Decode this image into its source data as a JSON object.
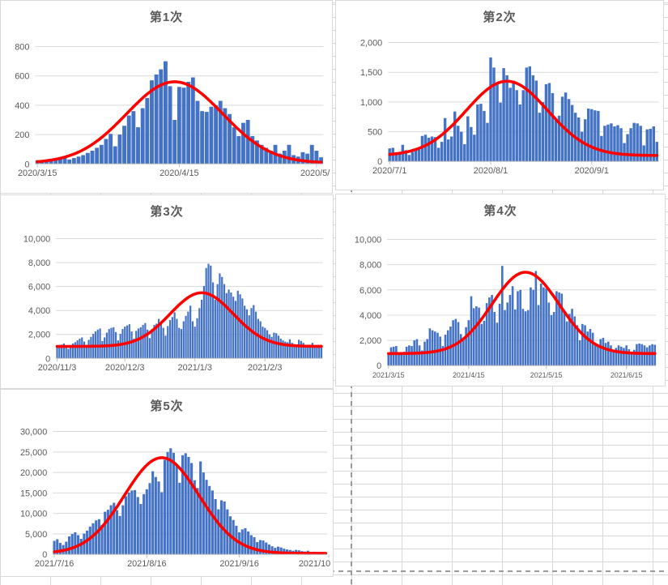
{
  "sheet": {
    "background_color": "#FFFFFF",
    "gridline_color": "#D8D8D8",
    "page_break_color": "#9B9B9B"
  },
  "palette": {
    "bar": "#4472C4",
    "curve": "#FF0000",
    "title_text": "#595959",
    "tick_text": "#595959",
    "gridline": "#D9D9D9",
    "axis_line": "#BFBFBF",
    "chart_border": "#D9D9D9"
  },
  "chart_data": [
    {
      "id": "wave1",
      "type": "bar",
      "title": "第1次",
      "ylabel": "",
      "xlabel": "",
      "ylim": [
        0,
        800
      ],
      "grid": true,
      "legend": "none",
      "yticks": [
        {
          "v": 0,
          "label": "0"
        },
        {
          "v": 200,
          "label": "200"
        },
        {
          "v": 400,
          "label": "400"
        },
        {
          "v": 600,
          "label": "600"
        },
        {
          "v": 800,
          "label": "800"
        }
      ],
      "xticks": [
        {
          "day": 0,
          "label": "2020/3/15"
        },
        {
          "day": 31,
          "label": "2020/4/15"
        },
        {
          "day": 61,
          "label": "2020/5/",
          "anchor": "end"
        }
      ],
      "values": [
        25,
        15,
        30,
        35,
        40,
        40,
        45,
        30,
        40,
        50,
        60,
        75,
        90,
        110,
        130,
        170,
        205,
        120,
        200,
        260,
        330,
        360,
        250,
        380,
        450,
        570,
        610,
        645,
        700,
        530,
        300,
        525,
        520,
        560,
        590,
        430,
        360,
        355,
        390,
        400,
        430,
        380,
        340,
        250,
        190,
        280,
        300,
        190,
        160,
        130,
        110,
        90,
        130,
        70,
        90,
        130,
        60,
        50,
        80,
        70,
        130,
        90,
        45
      ],
      "curve": {
        "shape": "gaussian",
        "baseline": 6,
        "peak": 560,
        "center_index": 30,
        "sigma_days": 10.5
      }
    },
    {
      "id": "wave2",
      "type": "bar",
      "title": "第2次",
      "ylabel": "",
      "xlabel": "",
      "ylim": [
        0,
        2000
      ],
      "grid": true,
      "legend": "none",
      "yticks": [
        {
          "v": 0,
          "label": "0"
        },
        {
          "v": 500,
          "label": "500"
        },
        {
          "v": 1000,
          "label": "1,000"
        },
        {
          "v": 1500,
          "label": "1,500"
        },
        {
          "v": 2000,
          "label": "2,000"
        }
      ],
      "xticks": [
        {
          "day": 0,
          "label": "2020/7/1"
        },
        {
          "day": 31,
          "label": "2020/8/1"
        },
        {
          "day": 62,
          "label": "2020/9/1"
        }
      ],
      "values": [
        220,
        230,
        130,
        150,
        280,
        190,
        110,
        160,
        210,
        230,
        430,
        450,
        400,
        420,
        410,
        230,
        330,
        730,
        370,
        420,
        840,
        600,
        500,
        290,
        760,
        580,
        450,
        960,
        970,
        850,
        650,
        1750,
        1580,
        1300,
        990,
        1570,
        1450,
        1240,
        1360,
        1200,
        960,
        1200,
        1580,
        1600,
        1450,
        1360,
        820,
        1000,
        1300,
        1320,
        1150,
        690,
        770,
        1090,
        1160,
        1050,
        950,
        820,
        740,
        500,
        710,
        890,
        880,
        860,
        850,
        430,
        600,
        620,
        640,
        590,
        610,
        560,
        310,
        460,
        560,
        650,
        640,
        600,
        270,
        540,
        550,
        590,
        330
      ],
      "curve": {
        "shape": "gaussian",
        "baseline": 100,
        "peak": 1350,
        "center_index": 36,
        "sigma_days": 12.5
      }
    },
    {
      "id": "wave3",
      "type": "bar",
      "title": "第3次",
      "ylabel": "",
      "xlabel": "",
      "ylim": [
        0,
        10000
      ],
      "grid": true,
      "legend": "none",
      "yticks": [
        {
          "v": 0,
          "label": "0"
        },
        {
          "v": 2000,
          "label": "2,000"
        },
        {
          "v": 4000,
          "label": "4,000"
        },
        {
          "v": 6000,
          "label": "6,000"
        },
        {
          "v": 8000,
          "label": "8,000"
        },
        {
          "v": 10000,
          "label": "10,000"
        }
      ],
      "xticks": [
        {
          "day": 0,
          "label": "2020/11/3"
        },
        {
          "day": 30,
          "label": "2020/12/3"
        },
        {
          "day": 61,
          "label": "2021/1/3"
        },
        {
          "day": 92,
          "label": "2021/2/3"
        }
      ],
      "values": [
        950,
        1050,
        1150,
        1250,
        1000,
        800,
        950,
        1250,
        1350,
        1500,
        1650,
        1750,
        1400,
        950,
        1550,
        1800,
        2050,
        2250,
        2400,
        2500,
        1450,
        1750,
        2150,
        2450,
        2550,
        2600,
        2200,
        1500,
        2050,
        2450,
        2650,
        2750,
        2850,
        2250,
        1650,
        2300,
        2500,
        2600,
        2800,
        2950,
        2400,
        1700,
        2450,
        2800,
        2900,
        3300,
        2950,
        2550,
        1900,
        2700,
        3200,
        3450,
        3850,
        3300,
        2550,
        2450,
        3100,
        3550,
        3900,
        4400,
        3100,
        2650,
        3350,
        4200,
        4900,
        6050,
        7550,
        7900,
        7750,
        6350,
        4900,
        6200,
        7100,
        6800,
        6200,
        5450,
        5750,
        5500,
        5150,
        4800,
        5650,
        5350,
        5000,
        4400,
        4100,
        3600,
        4200,
        4450,
        3900,
        3300,
        3100,
        2650,
        2550,
        2350,
        2000,
        1800,
        2150,
        2100,
        1900,
        1650,
        1500,
        1400,
        1350,
        1600,
        1300,
        1200,
        1100,
        1550,
        1450,
        1300,
        1100,
        1000,
        950,
        1300,
        1050,
        1000,
        950,
        900
      ],
      "curve": {
        "shape": "gaussian",
        "baseline": 1000,
        "peak": 5480,
        "center_index": 64,
        "sigma_days": 14
      }
    },
    {
      "id": "wave4",
      "type": "bar",
      "title": "第4次",
      "ylabel": "",
      "xlabel": "",
      "ylim": [
        0,
        10000
      ],
      "grid": true,
      "legend": "none",
      "yticks": [
        {
          "v": 0,
          "label": "0"
        },
        {
          "v": 2000,
          "label": "2,000"
        },
        {
          "v": 4000,
          "label": "4,000"
        },
        {
          "v": 6000,
          "label": "6,000"
        },
        {
          "v": 8000,
          "label": "8,000"
        },
        {
          "v": 10000,
          "label": "10,000"
        }
      ],
      "xticks": [
        {
          "day": 0,
          "label": "2021/3/15"
        },
        {
          "day": 31,
          "label": "2021/4/15"
        },
        {
          "day": 61,
          "label": "2021/5/15"
        },
        {
          "day": 92,
          "label": "2021/6/15"
        }
      ],
      "values": [
        900,
        1450,
        1500,
        1550,
        1000,
        900,
        1100,
        1500,
        1600,
        1550,
        2000,
        2100,
        1600,
        1200,
        1900,
        2100,
        2950,
        2800,
        2700,
        2600,
        2300,
        1550,
        2450,
        2800,
        3100,
        3600,
        3700,
        3450,
        2500,
        2100,
        3050,
        3600,
        5500,
        4550,
        4700,
        4600,
        3300,
        3550,
        4950,
        5400,
        5600,
        4250,
        3400,
        4900,
        7900,
        4400,
        5000,
        5600,
        6300,
        4450,
        5900,
        6000,
        4500,
        4300,
        4400,
        6200,
        6000,
        7500,
        4800,
        6500,
        6200,
        6100,
        5000,
        4000,
        4250,
        5900,
        5800,
        5700,
        4200,
        3500,
        4100,
        4500,
        3900,
        3200,
        2000,
        3300,
        3200,
        2700,
        2900,
        2600,
        1700,
        1500,
        2100,
        2200,
        1800,
        1900,
        1600,
        1100,
        1400,
        1600,
        1500,
        1400,
        1600,
        1300,
        1000,
        1250,
        1700,
        1750,
        1700,
        1600,
        1450,
        1600,
        1700,
        1650
      ],
      "curve": {
        "shape": "gaussian",
        "baseline": 950,
        "peak": 7400,
        "center_index": 53,
        "sigma_days": 13
      }
    },
    {
      "id": "wave5",
      "type": "bar",
      "title": "第5次",
      "ylabel": "",
      "xlabel": "",
      "ylim": [
        0,
        30000
      ],
      "grid": true,
      "legend": "none",
      "yticks": [
        {
          "v": 0,
          "label": "0"
        },
        {
          "v": 5000,
          "label": "5,000"
        },
        {
          "v": 10000,
          "label": "10,000"
        },
        {
          "v": 15000,
          "label": "15,000"
        },
        {
          "v": 20000,
          "label": "20,000"
        },
        {
          "v": 25000,
          "label": "25,000"
        },
        {
          "v": 30000,
          "label": "30,000"
        }
      ],
      "xticks": [
        {
          "day": 0,
          "label": "2021/7/16"
        },
        {
          "day": 31,
          "label": "2021/8/16"
        },
        {
          "day": 62,
          "label": "2021/9/16"
        },
        {
          "day": 92,
          "label": "2021/10",
          "anchor": "end"
        }
      ],
      "values": [
        3300,
        3700,
        2800,
        2300,
        3100,
        4400,
        5000,
        5400,
        4700,
        3800,
        5100,
        5800,
        6800,
        7600,
        8300,
        8600,
        7200,
        10400,
        10900,
        12000,
        12600,
        10800,
        9400,
        12000,
        14200,
        15100,
        15600,
        15700,
        14000,
        12300,
        14700,
        15900,
        17400,
        20300,
        18900,
        17800,
        15200,
        23100,
        25000,
        25900,
        24800,
        21600,
        17500,
        24200,
        24700,
        23800,
        22300,
        18100,
        16200,
        22700,
        20000,
        18200,
        16700,
        15600,
        13500,
        11000,
        13200,
        12900,
        11000,
        9300,
        8400,
        7000,
        5400,
        6100,
        6400,
        5600,
        4700,
        4200,
        3000,
        3500,
        3400,
        2900,
        2400,
        2000,
        1600,
        1900,
        1700,
        1400,
        1200,
        1100,
        900,
        1100,
        1000,
        800,
        700,
        900,
        600,
        650,
        600,
        550,
        500,
        450
      ],
      "curve": {
        "shape": "gaussian",
        "baseline": 250,
        "peak": 23600,
        "center_index": 36,
        "sigma_days": 12.5
      }
    }
  ]
}
